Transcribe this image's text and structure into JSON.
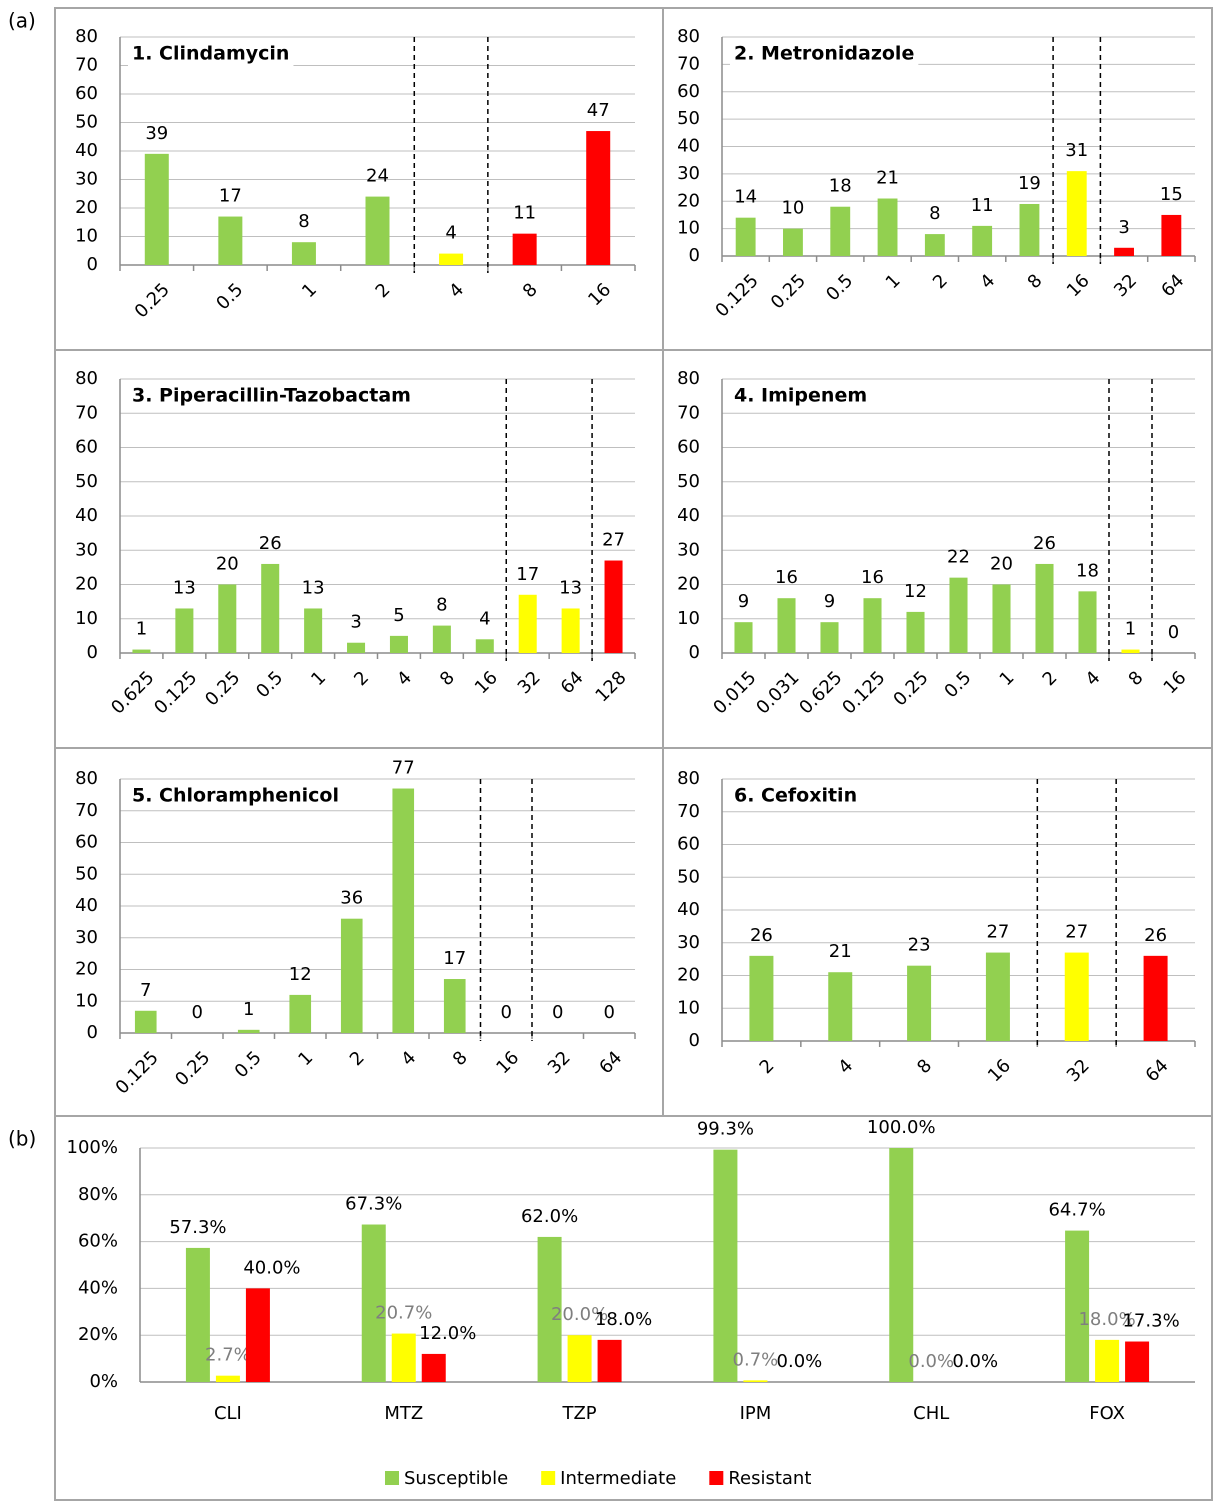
{
  "panel_labels": [
    "(a)",
    "(b)"
  ],
  "chart_data": [
    {
      "type": "bar",
      "title": "1. Clindamycin",
      "categories": [
        "0.25",
        "0.5",
        "1",
        "2",
        "4",
        "8",
        "16"
      ],
      "values": [
        39,
        17,
        8,
        24,
        4,
        11,
        47
      ],
      "colors": [
        "#92d050",
        "#92d050",
        "#92d050",
        "#92d050",
        "#ffff00",
        "#ff0000",
        "#ff0000"
      ],
      "ylim": [
        0,
        80
      ],
      "yticks": [
        0,
        10,
        20,
        30,
        40,
        50,
        60,
        70,
        80
      ],
      "grid": true
    },
    {
      "type": "bar",
      "title": "2. Metronidazole",
      "categories": [
        "0.125",
        "0.25",
        "0.5",
        "1",
        "2",
        "4",
        "8",
        "16",
        "32",
        "64"
      ],
      "values": [
        14,
        10,
        18,
        21,
        8,
        11,
        19,
        31,
        3,
        15
      ],
      "colors": [
        "#92d050",
        "#92d050",
        "#92d050",
        "#92d050",
        "#92d050",
        "#92d050",
        "#92d050",
        "#ffff00",
        "#ff0000",
        "#ff0000"
      ],
      "ylim": [
        0,
        80
      ],
      "yticks": [
        0,
        10,
        20,
        30,
        40,
        50,
        60,
        70,
        80
      ],
      "grid": true
    },
    {
      "type": "bar",
      "title": "3. Piperacillin-Tazobactam",
      "categories": [
        "0.625",
        "0.125",
        "0.25",
        "0.5",
        "1",
        "2",
        "4",
        "8",
        "16",
        "32",
        "64",
        "128"
      ],
      "values": [
        1,
        13,
        20,
        26,
        13,
        3,
        5,
        8,
        4,
        17,
        13,
        27
      ],
      "colors": [
        "#92d050",
        "#92d050",
        "#92d050",
        "#92d050",
        "#92d050",
        "#92d050",
        "#92d050",
        "#92d050",
        "#92d050",
        "#ffff00",
        "#ffff00",
        "#ff0000"
      ],
      "ylim": [
        0,
        80
      ],
      "yticks": [
        0,
        10,
        20,
        30,
        40,
        50,
        60,
        70,
        80
      ],
      "grid": true
    },
    {
      "type": "bar",
      "title": "4. Imipenem",
      "categories": [
        "0.015",
        "0.031",
        "0.625",
        "0.125",
        "0.25",
        "0.5",
        "1",
        "2",
        "4",
        "8",
        "16"
      ],
      "values": [
        9,
        16,
        9,
        16,
        12,
        22,
        20,
        26,
        18,
        1,
        0
      ],
      "colors": [
        "#92d050",
        "#92d050",
        "#92d050",
        "#92d050",
        "#92d050",
        "#92d050",
        "#92d050",
        "#92d050",
        "#92d050",
        "#ffff00",
        "#ff0000"
      ],
      "ylim": [
        0,
        80
      ],
      "yticks": [
        0,
        10,
        20,
        30,
        40,
        50,
        60,
        70,
        80
      ],
      "grid": true
    },
    {
      "type": "bar",
      "title": "5. Chloramphenicol",
      "categories": [
        "0.125",
        "0.25",
        "0.5",
        "1",
        "2",
        "4",
        "8",
        "16",
        "32",
        "64"
      ],
      "values": [
        7,
        0,
        1,
        12,
        36,
        77,
        17,
        0,
        0,
        0
      ],
      "colors": [
        "#92d050",
        "#92d050",
        "#92d050",
        "#92d050",
        "#92d050",
        "#92d050",
        "#92d050",
        "#ffff00",
        "#ff0000",
        "#ff0000"
      ],
      "ylim": [
        0,
        80
      ],
      "yticks": [
        0,
        10,
        20,
        30,
        40,
        50,
        60,
        70,
        80
      ],
      "grid": true
    },
    {
      "type": "bar",
      "title": "6. Cefoxitin",
      "categories": [
        "2",
        "4",
        "8",
        "16",
        "32",
        "64"
      ],
      "values": [
        26,
        21,
        23,
        27,
        27,
        26
      ],
      "colors": [
        "#92d050",
        "#92d050",
        "#92d050",
        "#92d050",
        "#ffff00",
        "#ff0000"
      ],
      "ylim": [
        0,
        80
      ],
      "yticks": [
        0,
        10,
        20,
        30,
        40,
        50,
        60,
        70,
        80
      ],
      "grid": true
    },
    {
      "type": "grouped-bar",
      "categories": [
        "CLI",
        "MTZ",
        "TZP",
        "IPM",
        "CHL",
        "FOX"
      ],
      "series": [
        {
          "name": "Susceptible",
          "color": "#92d050",
          "label_color": "#000000",
          "values": [
            57.3,
            67.3,
            62.0,
            99.3,
            100.0,
            64.7
          ],
          "value_labels": [
            "57.3%",
            "67.3%",
            "62.0%",
            "99.3%",
            "100.0%",
            "64.7%"
          ]
        },
        {
          "name": "Intermediate",
          "color": "#ffff00",
          "label_color": "#7f7f7f",
          "values": [
            2.7,
            20.7,
            20.0,
            0.7,
            0.0,
            18.0
          ],
          "value_labels": [
            "2.7%",
            "20.7%",
            "20.0%",
            "0.7%",
            "0.0%",
            "18.0%"
          ]
        },
        {
          "name": "Resistant",
          "color": "#ff0000",
          "label_color": "#000000",
          "values": [
            40.0,
            12.0,
            18.0,
            0.0,
            0.0,
            17.3
          ],
          "value_labels": [
            "40.0%",
            "12.0%",
            "18.0%",
            "0.0%",
            "0.0%",
            "17.3%"
          ]
        }
      ],
      "ylim": [
        0,
        100
      ],
      "yticks": [
        {
          "value": 0,
          "label": "0%"
        },
        {
          "value": 20,
          "label": "20%"
        },
        {
          "value": 40,
          "label": "40%"
        },
        {
          "value": 60,
          "label": "60%"
        },
        {
          "value": 80,
          "label": "80%"
        },
        {
          "value": 100,
          "label": "100%"
        }
      ],
      "grid": true,
      "legend": "bottom"
    }
  ]
}
